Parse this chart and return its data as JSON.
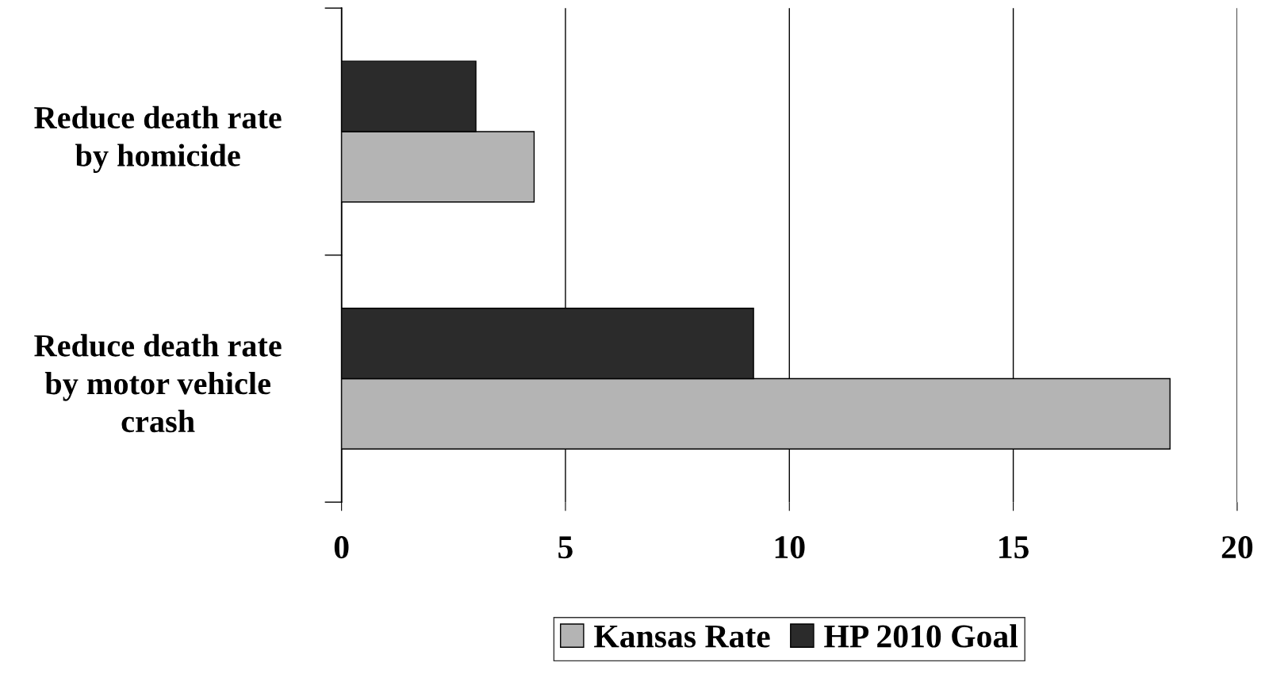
{
  "chart_data": {
    "type": "bar",
    "orientation": "horizontal",
    "categories": [
      "Reduce death rate\nby homicide",
      "Reduce death rate\nby motor vehicle\ncrash"
    ],
    "series": [
      {
        "name": "Kansas Rate",
        "color": "#b4b4b4",
        "values": [
          4.3,
          18.5
        ]
      },
      {
        "name": "HP 2010 Goal",
        "color": "#2b2b2b",
        "values": [
          3.0,
          9.2
        ]
      }
    ],
    "xlim": [
      0,
      20
    ],
    "xticks": [
      0,
      5,
      10,
      15,
      20
    ],
    "grid": "x",
    "legend": "bottom"
  }
}
